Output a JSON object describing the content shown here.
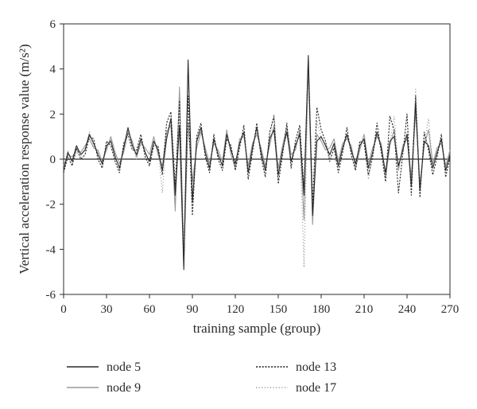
{
  "chart_data": {
    "type": "line",
    "title": "",
    "xlabel": "training sample (group)",
    "ylabel": "Vertical acceleration response value (m/s²)",
    "xlim": [
      0,
      270
    ],
    "ylim": [
      -6,
      6
    ],
    "xticks": [
      0,
      30,
      60,
      90,
      120,
      150,
      180,
      210,
      240,
      270
    ],
    "yticks": [
      -6,
      -4,
      -2,
      0,
      2,
      4,
      6
    ],
    "grid": false,
    "legend_position": "bottom",
    "x": [
      0,
      3,
      6,
      9,
      12,
      15,
      18,
      21,
      24,
      27,
      30,
      33,
      36,
      39,
      42,
      45,
      48,
      51,
      54,
      57,
      60,
      63,
      66,
      69,
      72,
      75,
      78,
      81,
      84,
      87,
      90,
      93,
      96,
      99,
      102,
      105,
      108,
      111,
      114,
      117,
      120,
      123,
      126,
      129,
      132,
      135,
      138,
      141,
      144,
      147,
      150,
      153,
      156,
      159,
      162,
      165,
      168,
      171,
      174,
      177,
      180,
      183,
      186,
      189,
      192,
      195,
      198,
      201,
      204,
      207,
      210,
      213,
      216,
      219,
      222,
      225,
      228,
      231,
      234,
      237,
      240,
      243,
      246,
      249,
      252,
      255,
      258,
      261,
      264,
      267,
      270
    ],
    "series": [
      {
        "name": "node 5",
        "style": "solid",
        "color": "#2a2a2a",
        "values": [
          -0.5,
          0.3,
          -0.1,
          0.6,
          0.2,
          0.4,
          1.1,
          0.7,
          0.2,
          -0.2,
          0.6,
          0.8,
          0.1,
          -0.4,
          0.5,
          1.4,
          0.6,
          0.2,
          0.9,
          0.3,
          -0.1,
          0.8,
          0.4,
          -0.5,
          0.9,
          1.8,
          -1.6,
          1.5,
          -4.9,
          4.4,
          -1.9,
          0.8,
          1.4,
          0.3,
          -0.4,
          0.9,
          0.2,
          -0.3,
          1.1,
          0.4,
          -0.2,
          0.7,
          1.2,
          -0.6,
          0.5,
          1.4,
          0.3,
          -0.5,
          0.9,
          1.3,
          -0.7,
          0.4,
          1.2,
          -0.1,
          0.6,
          1.1,
          -1.6,
          4.6,
          -2.5,
          0.8,
          1.0,
          0.6,
          0.2,
          0.7,
          -0.3,
          0.5,
          1.1,
          0.4,
          -0.2,
          0.6,
          0.9,
          -0.4,
          0.3,
          1.2,
          0.5,
          -0.6,
          0.8,
          1.0,
          -0.3,
          0.4,
          1.1,
          -1.2,
          2.5,
          -1.4,
          0.8,
          0.6,
          -0.4,
          0.3,
          0.9,
          -0.5,
          0.2
        ]
      },
      {
        "name": "node 9",
        "style": "solid",
        "color": "#9a9a9a",
        "values": [
          -0.3,
          0.2,
          0.1,
          0.4,
          0.3,
          0.6,
          0.9,
          0.5,
          0.4,
          -0.1,
          0.4,
          1.0,
          0.3,
          -0.2,
          0.3,
          1.2,
          0.8,
          0.1,
          0.7,
          0.5,
          0.2,
          1.0,
          0.2,
          -0.3,
          1.2,
          1.5,
          -2.3,
          3.2,
          -4.5,
          1.6,
          -1.0,
          0.5,
          1.2,
          0.5,
          -0.2,
          0.7,
          0.4,
          -0.1,
          1.3,
          0.2,
          -0.4,
          0.9,
          1.0,
          -0.3,
          0.7,
          1.1,
          0.5,
          -0.3,
          0.6,
          1.5,
          -0.4,
          0.6,
          1.4,
          0.2,
          0.4,
          1.3,
          -2.7,
          4.2,
          -2.9,
          1.1,
          0.8,
          0.4,
          0.5,
          0.9,
          -0.1,
          0.7,
          0.9,
          0.6,
          -0.4,
          0.4,
          1.1,
          -0.2,
          0.5,
          1.0,
          0.7,
          -0.8,
          0.6,
          1.3,
          -0.5,
          0.6,
          0.9,
          -0.8,
          2.1,
          -1.1,
          0.6,
          1.3,
          -0.2,
          0.5,
          0.7,
          -0.3,
          0.4
        ]
      },
      {
        "name": "node 13",
        "style": "dashed",
        "color": "#2a2a2a",
        "values": [
          -0.6,
          0.1,
          -0.3,
          0.5,
          0.0,
          0.2,
          1.0,
          0.9,
          0.0,
          -0.4,
          0.8,
          0.6,
          -0.1,
          -0.6,
          0.7,
          1.1,
          0.4,
          0.4,
          1.1,
          0.1,
          -0.3,
          0.6,
          0.6,
          -0.7,
          1.6,
          2.1,
          -1.2,
          2.6,
          -4.7,
          2.8,
          -2.5,
          1.0,
          1.6,
          0.1,
          -0.6,
          1.1,
          0.0,
          -0.5,
          0.9,
          0.6,
          -0.5,
          0.5,
          1.5,
          -0.9,
          0.3,
          1.6,
          0.1,
          -0.8,
          1.2,
          1.9,
          -1.1,
          0.2,
          1.6,
          -0.4,
          0.8,
          1.5,
          -1.3,
          4.4,
          -2.0,
          2.3,
          1.3,
          0.8,
          -0.1,
          0.5,
          -0.6,
          0.3,
          1.4,
          0.2,
          -0.5,
          0.8,
          0.7,
          -0.7,
          0.1,
          1.6,
          0.3,
          -1.0,
          1.9,
          1.3,
          -1.5,
          0.2,
          2.0,
          -1.6,
          2.8,
          -1.7,
          1.2,
          0.4,
          -0.7,
          0.1,
          1.1,
          -0.8,
          0.1
        ]
      },
      {
        "name": "node 17",
        "style": "dotted",
        "color": "#8a8a8a",
        "values": [
          -0.4,
          0.4,
          -0.2,
          0.3,
          0.1,
          0.5,
          1.2,
          0.6,
          0.3,
          -0.3,
          0.5,
          0.9,
          0.2,
          -0.5,
          0.4,
          1.3,
          0.7,
          0.0,
          0.8,
          0.2,
          -0.2,
          0.7,
          0.5,
          -1.5,
          1.1,
          1.9,
          -1.9,
          2.0,
          -4.0,
          3.5,
          -1.5,
          0.7,
          1.3,
          0.2,
          -0.5,
          0.8,
          0.1,
          -0.2,
          1.0,
          0.3,
          -0.3,
          0.8,
          1.1,
          -0.5,
          0.6,
          1.2,
          0.2,
          -0.6,
          1.0,
          2.0,
          -0.9,
          0.3,
          1.3,
          -0.2,
          0.5,
          1.2,
          -4.8,
          3.9,
          -2.3,
          1.7,
          0.9,
          0.7,
          0.1,
          0.6,
          -0.4,
          0.4,
          1.0,
          0.3,
          -0.3,
          0.7,
          0.8,
          -0.9,
          0.2,
          1.1,
          0.4,
          -0.7,
          0.7,
          1.9,
          -0.4,
          0.3,
          1.2,
          -0.9,
          3.1,
          -1.3,
          0.7,
          1.8,
          -0.3,
          0.2,
          0.8,
          -0.6,
          0.3
        ]
      }
    ]
  }
}
